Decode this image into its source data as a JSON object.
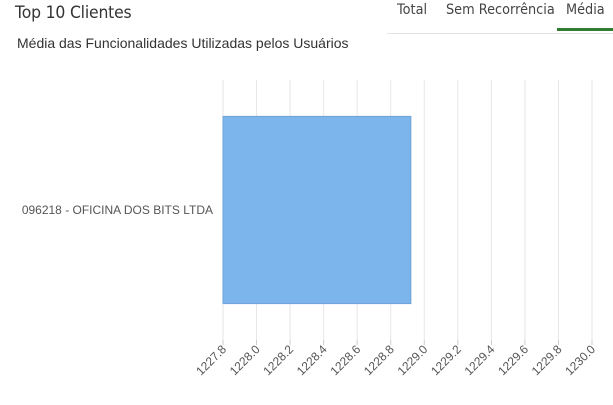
{
  "header": {
    "title": "Top 10 Clientes",
    "subtitle": "Média das Funcionalidades Utilizadas pelos Usuários"
  },
  "tabs": [
    {
      "label": "Total",
      "active": false
    },
    {
      "label": "Sem Recorrência",
      "active": false
    },
    {
      "label": "Média",
      "active": true
    }
  ],
  "colors": {
    "bar_fill": "#7cb5ec",
    "bar_stroke": "#6fa3d6",
    "active_tab": "#2e7d32",
    "grid": "#e6e6e6"
  },
  "chart_data": {
    "type": "bar",
    "orientation": "horizontal",
    "categories": [
      "096218 - OFICINA DOS BITS LTDA"
    ],
    "values": [
      1228.92
    ],
    "xlim": [
      1227.8,
      1230.0
    ],
    "xticks": [
      "1227.8",
      "1228.0",
      "1228.2",
      "1228.4",
      "1228.6",
      "1228.8",
      "1229.0",
      "1229.2",
      "1229.4",
      "1229.6",
      "1229.8",
      "1230.0"
    ],
    "grid": true,
    "legend": "none"
  }
}
